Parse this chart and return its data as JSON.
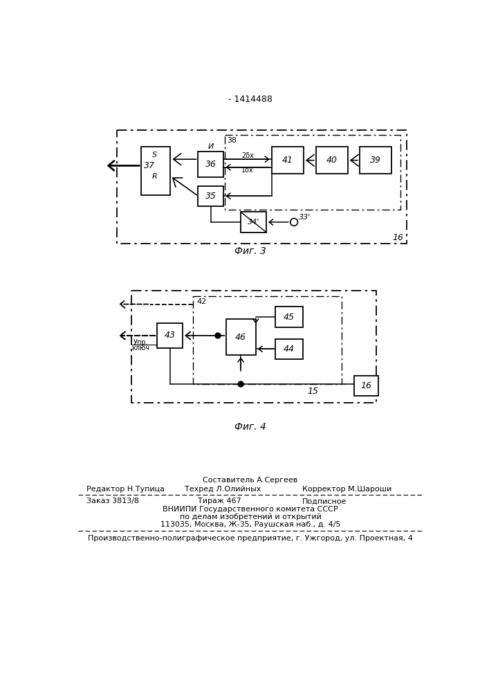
{
  "title": "- 1414488",
  "bg_color": "#ffffff",
  "line_color": "#000000",
  "fig3_caption": "Фиг. 3",
  "fig4_caption": "Фиг. 4",
  "footer": {
    "sestavitel": "Составитель А.Сергеев",
    "redaktor": "Редактор Н.Тупица",
    "tehred": "Техред Л.Олийных",
    "korrektor": "Корректор М.Шароши",
    "zakaz": "Заказ 3813/8",
    "tiraz": "Тираж 467",
    "podpisnoe": "Подписное",
    "vnipi1": "ВНИИПИ Государственного комитета СССР",
    "vnipi2": "по делам изобретений и открытий",
    "vnipi3": "113035, Москва, Ж-35, Раушская наб., д. 4/5",
    "proizvod": "Производственно-полиграфическое предприятие, г. Ужгород, ул. Проектная, 4"
  }
}
